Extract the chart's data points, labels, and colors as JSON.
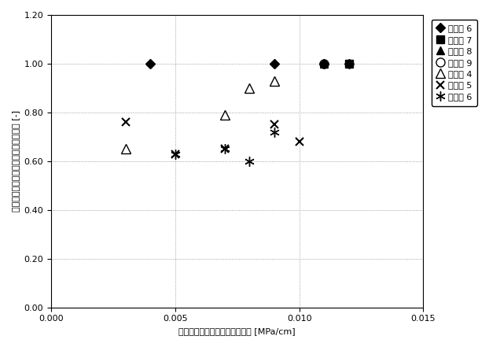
{
  "title": "",
  "xlabel": "充填停止時カラム圧／ベッド高 [MPa/cm]",
  "ylabel": "メインピークエリア／全ピークエリア [-]",
  "xlim": [
    0.0,
    0.015
  ],
  "ylim": [
    0.0,
    1.2
  ],
  "xticks": [
    0.0,
    0.005,
    0.01,
    0.015
  ],
  "yticks": [
    0.0,
    0.2,
    0.4,
    0.6,
    0.8,
    1.0,
    1.2
  ],
  "series": {
    "実施例6": {
      "x": [
        0.004,
        0.009,
        0.011,
        0.012
      ],
      "y": [
        1.0,
        1.0,
        1.0,
        1.0
      ],
      "marker": "D",
      "color": "black",
      "mfc": "black",
      "mec": "black",
      "markersize": 6,
      "zorder": 5,
      "legend_marker": "D",
      "legend_label": "実施例 6"
    },
    "実施例7": {
      "x": [
        0.012
      ],
      "y": [
        1.0
      ],
      "marker": "s",
      "color": "black",
      "mfc": "black",
      "mec": "black",
      "markersize": 7,
      "zorder": 5,
      "legend_marker": "s",
      "legend_label": "実施例 7"
    },
    "実施例8": {
      "x": [
        0.011
      ],
      "y": [
        1.0
      ],
      "marker": "^",
      "color": "black",
      "mfc": "black",
      "mec": "black",
      "markersize": 7,
      "zorder": 5,
      "legend_marker": "^",
      "legend_label": "実施例 8"
    },
    "実施例9": {
      "x": [
        0.011
      ],
      "y": [
        1.0
      ],
      "marker": "o",
      "color": "black",
      "mfc": "none",
      "mec": "black",
      "markersize": 8,
      "zorder": 5,
      "legend_marker": "o",
      "legend_label": "実施例 9"
    },
    "比較例4": {
      "x": [
        0.003,
        0.007,
        0.008,
        0.009
      ],
      "y": [
        0.65,
        0.79,
        0.9,
        0.93
      ],
      "marker": "^",
      "color": "black",
      "mfc": "none",
      "mec": "black",
      "markersize": 8,
      "zorder": 4,
      "legend_marker": "^",
      "legend_label": "比較例 4"
    },
    "比較例5": {
      "x": [
        0.003,
        0.005,
        0.007,
        0.009,
        0.01
      ],
      "y": [
        0.76,
        0.63,
        0.65,
        0.75,
        0.68
      ],
      "marker": "x",
      "color": "black",
      "mfc": "none",
      "mec": "black",
      "markersize": 7,
      "zorder": 4,
      "legend_marker": "x",
      "legend_label": "比較例 5"
    },
    "比較例6": {
      "x": [
        0.005,
        0.007,
        0.008,
        0.009
      ],
      "y": [
        0.63,
        0.65,
        0.6,
        0.72
      ],
      "marker": "*",
      "color": "black",
      "mfc": "none",
      "mec": "black",
      "markersize": 9,
      "zorder": 4,
      "legend_marker": "*",
      "legend_label": "比較例 6"
    }
  },
  "background_color": "#ffffff",
  "grid_color": "#888888",
  "fontsize_ticks": 8,
  "fontsize_label": 8,
  "fontsize_legend": 8
}
